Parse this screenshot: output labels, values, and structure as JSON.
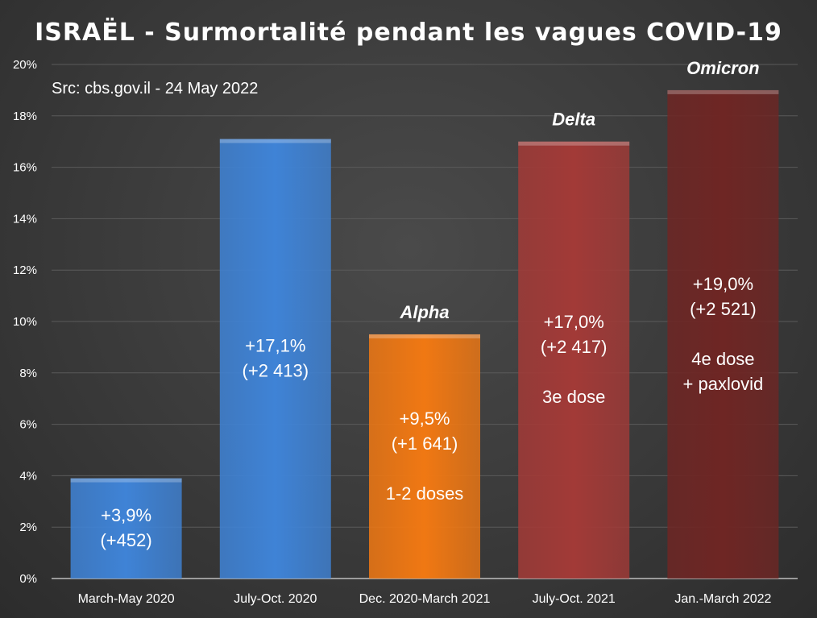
{
  "chart_data": {
    "type": "bar",
    "title": "ISRAËL - Surmortalité pendant les vagues COVID-19",
    "source": "Src: cbs.gov.il - 24 May 2022",
    "categories": [
      "March-May 2020",
      "July-Oct. 2020",
      "Dec. 2020-March 2021",
      "July-Oct. 2021",
      "Jan.-March 2022"
    ],
    "values": [
      3.9,
      17.1,
      9.5,
      17.0,
      19.0
    ],
    "ylim": [
      0,
      20
    ],
    "yticks": [
      0,
      2,
      4,
      6,
      8,
      10,
      12,
      14,
      16,
      18,
      20
    ],
    "ytick_labels": [
      "0%",
      "2%",
      "4%",
      "6%",
      "8%",
      "10%",
      "12%",
      "14%",
      "16%",
      "18%",
      "20%"
    ],
    "grid": true,
    "xlabel": "",
    "ylabel": "",
    "bars": [
      {
        "category": "March-May 2020",
        "value": 3.9,
        "color": "#3f83d6",
        "wave": "",
        "labels": [
          "+3,9%",
          "(+452)"
        ]
      },
      {
        "category": "July-Oct. 2020",
        "value": 17.1,
        "color": "#3f83d6",
        "wave": "",
        "labels": [
          "+17,1%",
          "(+2 413)"
        ]
      },
      {
        "category": "Dec. 2020-March 2021",
        "value": 9.5,
        "color": "#f07813",
        "wave": "Alpha",
        "labels": [
          "+9,5%",
          "(+1 641)",
          "",
          "1-2 doses"
        ]
      },
      {
        "category": "July-Oct. 2021",
        "value": 17.0,
        "color": "#a23a37",
        "wave": "Delta",
        "labels": [
          "+17,0%",
          "(+2 417)",
          "",
          "3e dose"
        ]
      },
      {
        "category": "Jan.-March 2022",
        "value": 19.0,
        "color": "#6e2624",
        "wave": "Omicron",
        "labels": [
          "+19,0%",
          "(+2 521)",
          "",
          "4e dose",
          "+ paxlovid"
        ]
      }
    ]
  }
}
